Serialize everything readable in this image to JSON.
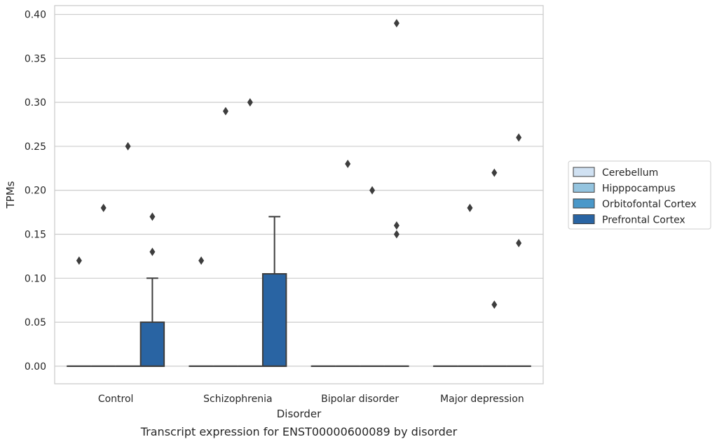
{
  "chart_data": {
    "type": "box",
    "caption": "Transcript expression for ENST00000600089 by disorder",
    "xlabel": "Disorder",
    "ylabel": "TPMs",
    "ylim": [
      -0.02,
      0.41
    ],
    "yticks": [
      "0.00",
      "0.05",
      "0.10",
      "0.15",
      "0.20",
      "0.25",
      "0.30",
      "0.35",
      "0.40"
    ],
    "grid": true,
    "legend_position": "right",
    "categories": [
      "Control",
      "Schizophrenia",
      "Bipolar disorder",
      "Major depression"
    ],
    "series": [
      {
        "name": "Cerebellum",
        "color": "#d0e1f2",
        "boxes": [
          {
            "q1": 0,
            "median": 0,
            "q3": 0,
            "whisker_low": 0,
            "whisker_high": 0,
            "outliers": [
              0.12
            ]
          },
          {
            "q1": 0,
            "median": 0,
            "q3": 0,
            "whisker_low": 0,
            "whisker_high": 0,
            "outliers": [
              0.12
            ]
          },
          {
            "q1": 0,
            "median": 0,
            "q3": 0,
            "whisker_low": 0,
            "whisker_high": 0,
            "outliers": []
          },
          {
            "q1": 0,
            "median": 0,
            "q3": 0,
            "whisker_low": 0,
            "whisker_high": 0,
            "outliers": []
          }
        ]
      },
      {
        "name": "Hipppocampus",
        "color": "#94c4df",
        "boxes": [
          {
            "q1": 0,
            "median": 0,
            "q3": 0,
            "whisker_low": 0,
            "whisker_high": 0,
            "outliers": [
              0.18
            ]
          },
          {
            "q1": 0,
            "median": 0,
            "q3": 0,
            "whisker_low": 0,
            "whisker_high": 0,
            "outliers": [
              0.29
            ]
          },
          {
            "q1": 0,
            "median": 0,
            "q3": 0,
            "whisker_low": 0,
            "whisker_high": 0,
            "outliers": [
              0.23
            ]
          },
          {
            "q1": 0,
            "median": 0,
            "q3": 0,
            "whisker_low": 0,
            "whisker_high": 0,
            "outliers": [
              0.18
            ]
          }
        ]
      },
      {
        "name": "Orbitofontal Cortex",
        "color": "#4a98c9",
        "boxes": [
          {
            "q1": 0,
            "median": 0,
            "q3": 0,
            "whisker_low": 0,
            "whisker_high": 0,
            "outliers": [
              0.25
            ]
          },
          {
            "q1": 0,
            "median": 0,
            "q3": 0,
            "whisker_low": 0,
            "whisker_high": 0,
            "outliers": [
              0.3
            ]
          },
          {
            "q1": 0,
            "median": 0,
            "q3": 0,
            "whisker_low": 0,
            "whisker_high": 0,
            "outliers": [
              0.2
            ]
          },
          {
            "q1": 0,
            "median": 0,
            "q3": 0,
            "whisker_low": 0,
            "whisker_high": 0,
            "outliers": [
              0.07,
              0.22
            ]
          }
        ]
      },
      {
        "name": "Prefrontal Cortex",
        "color": "#2964a3",
        "boxes": [
          {
            "q1": 0,
            "median": 0,
            "q3": 0.05,
            "whisker_low": 0,
            "whisker_high": 0.1,
            "outliers": [
              0.13,
              0.17
            ]
          },
          {
            "q1": 0,
            "median": 0,
            "q3": 0.105,
            "whisker_low": 0,
            "whisker_high": 0.17,
            "outliers": []
          },
          {
            "q1": 0,
            "median": 0,
            "q3": 0,
            "whisker_low": 0,
            "whisker_high": 0,
            "outliers": [
              0.15,
              0.16,
              0.39
            ]
          },
          {
            "q1": 0,
            "median": 0,
            "q3": 0,
            "whisker_low": 0,
            "whisker_high": 0,
            "outliers": [
              0.14,
              0.26
            ]
          }
        ]
      }
    ]
  }
}
